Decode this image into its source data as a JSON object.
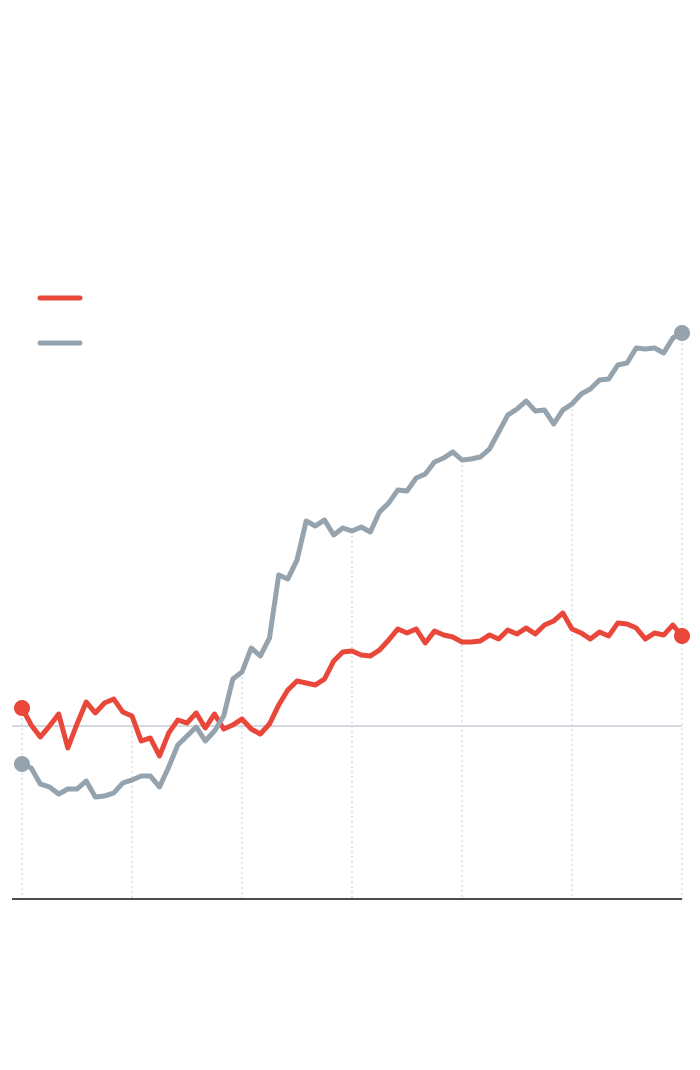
{
  "chart_data": {
    "type": "line",
    "x": [
      0,
      1,
      2,
      3,
      4,
      5,
      6,
      7,
      8,
      9,
      10,
      11,
      12,
      13,
      14,
      15,
      16,
      17,
      18,
      19,
      20,
      21,
      22,
      23,
      24,
      25,
      26,
      27,
      28,
      29,
      30,
      31,
      32,
      33,
      34,
      35,
      36,
      37,
      38,
      39,
      40,
      41,
      42,
      43,
      44,
      45,
      46,
      47,
      48,
      49,
      50,
      51,
      52,
      53,
      54,
      55,
      56,
      57,
      58,
      59,
      60,
      61,
      62,
      63,
      64,
      65,
      66,
      67,
      68,
      69,
      70,
      71,
      72
    ],
    "xlim": [
      0,
      72
    ],
    "xticks": [
      0,
      12,
      24,
      36,
      48,
      60,
      72
    ],
    "ylim": [
      -17.3,
      44.6
    ],
    "reference_line": 0,
    "grid": true,
    "series": [
      {
        "color": "#e8473a",
        "values": [
          1.8,
          0.1,
          -1.1,
          0,
          1.2,
          -2.2,
          0.2,
          2.4,
          1.3,
          2.3,
          2.7,
          1.4,
          1.0,
          -1.5,
          -1.2,
          -3.0,
          -0.7,
          0.6,
          0.3,
          1.3,
          -0.2,
          1.2,
          -0.3,
          0.1,
          0.7,
          -0.3,
          -0.8,
          0.2,
          2.1,
          3.6,
          4.5,
          4.3,
          4.1,
          4.7,
          6.5,
          7.4,
          7.5,
          7.1,
          7.0,
          7.6,
          8.6,
          9.7,
          9.3,
          9.7,
          8.3,
          9.5,
          9.1,
          8.9,
          8.4,
          8.4,
          8.5,
          9.1,
          8.7,
          9.6,
          9.2,
          9.8,
          9.2,
          10.1,
          10.5,
          11.3,
          9.7,
          9.3,
          8.7,
          9.4,
          9.0,
          10.3,
          10.2,
          9.8,
          8.7,
          9.3,
          9.1,
          10.1,
          9.0
        ]
      },
      {
        "color": "#94a3ad",
        "values": [
          -3.8,
          -4.2,
          -5.8,
          -6.1,
          -6.8,
          -6.3,
          -6.3,
          -5.5,
          -7.1,
          -7.0,
          -6.7,
          -5.7,
          -5.4,
          -5.0,
          -5.0,
          -6.1,
          -4.1,
          -1.9,
          -1.0,
          -0.1,
          -1.5,
          -0.5,
          1.0,
          4.7,
          5.4,
          7.8,
          7.0,
          8.8,
          15.1,
          14.7,
          16.6,
          20.5,
          20.0,
          20.6,
          19.1,
          19.8,
          19.5,
          19.9,
          19.4,
          21.4,
          22.3,
          23.6,
          23.5,
          24.8,
          25.2,
          26.4,
          26.8,
          27.4,
          26.6,
          26.7,
          26.9,
          27.7,
          29.4,
          31.1,
          31.7,
          32.5,
          31.5,
          31.6,
          30.2,
          31.6,
          32.2,
          33.2,
          33.7,
          34.6,
          34.7,
          36.1,
          36.3,
          37.8,
          37.7,
          37.8,
          37.3,
          38.8,
          39.3
        ]
      }
    ]
  }
}
